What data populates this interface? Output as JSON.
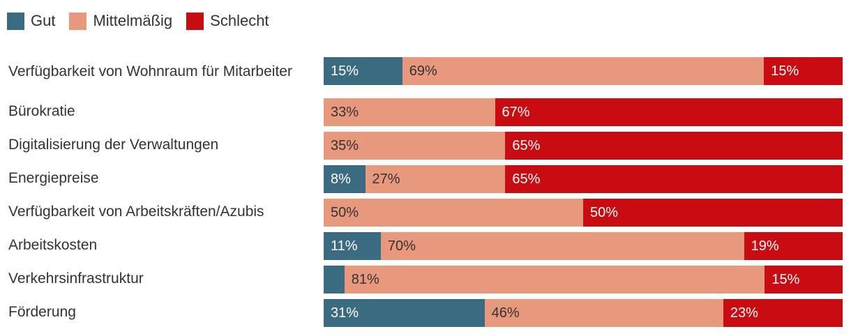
{
  "colors": {
    "gut": "#3a6b80",
    "mittel": "#e8987c",
    "schlecht": "#c80c12"
  },
  "legend": [
    {
      "key": "gut",
      "label": "Gut"
    },
    {
      "key": "mittel",
      "label": "Mittelmäßig"
    },
    {
      "key": "schlecht",
      "label": "Schlecht"
    }
  ],
  "chart_data": {
    "type": "bar",
    "orientation": "horizontal",
    "stacked": true,
    "value_unit": "%",
    "xlim": [
      0,
      100
    ],
    "grid": false,
    "legend_position": "top-left",
    "title": "",
    "xlabel": "",
    "ylabel": "",
    "categories": [
      "Verfügbarkeit von Wohnraum für Mitarbeiter",
      "Bürokratie",
      "Digitalisierung der Verwaltungen",
      "Energiepreise",
      "Verfügbarkeit von Arbeitskräften/Azubis",
      "Arbeitskosten",
      "Verkehrsinfrastruktur",
      "Förderung"
    ],
    "series": [
      {
        "name": "Gut",
        "values": [
          15,
          0,
          0,
          8,
          0,
          11,
          4,
          31
        ],
        "labels": [
          "15%",
          "",
          "",
          "8%",
          "",
          "11%",
          "",
          "31%"
        ]
      },
      {
        "name": "Mittelmäßig",
        "values": [
          69,
          33,
          35,
          27,
          50,
          70,
          81,
          46
        ],
        "labels": [
          "69%",
          "33%",
          "35%",
          "27%",
          "50%",
          "70%",
          "81%",
          "46%"
        ]
      },
      {
        "name": "Schlecht",
        "values": [
          15,
          67,
          65,
          65,
          50,
          19,
          15,
          23
        ],
        "labels": [
          "15%",
          "67%",
          "65%",
          "65%",
          "50%",
          "19%",
          "15%",
          "23%"
        ]
      }
    ]
  }
}
